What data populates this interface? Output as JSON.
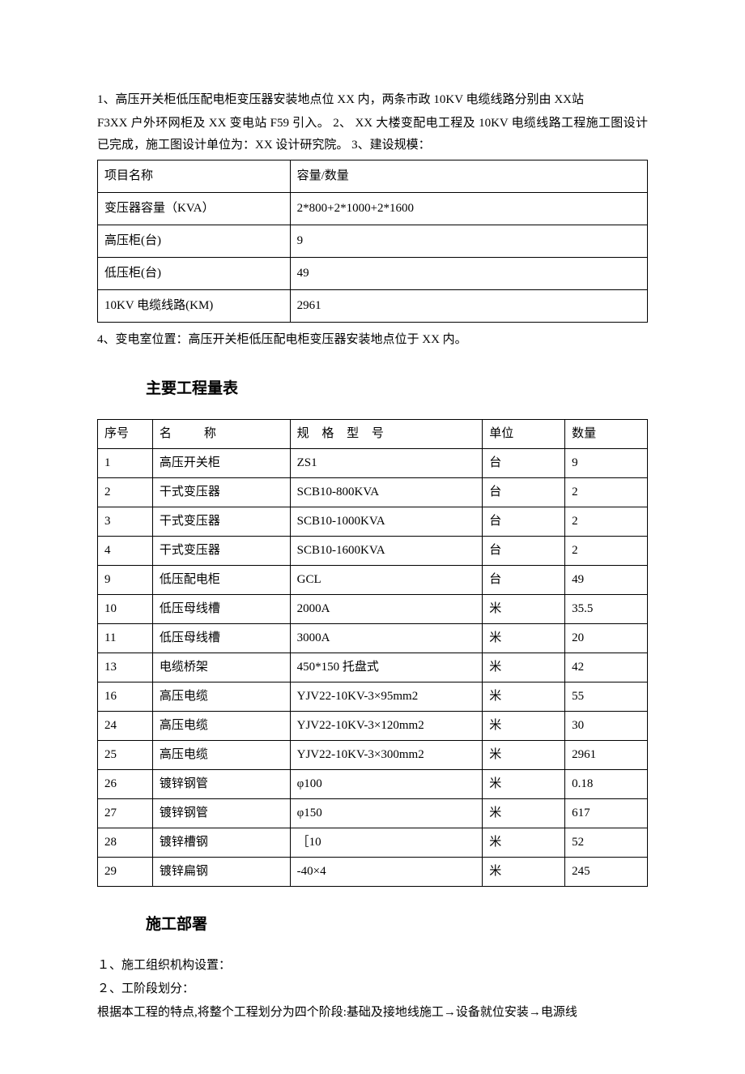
{
  "intro": {
    "p1": "1、高压开关柜低压配电柜变压器安装地点位 XX 内，两条市政 10KV 电缆线路分别由 XX站",
    "p2": "F3XX 户外环网柜及 XX 变电站 F59 引入。 2、 XX 大楼变配电工程及 10KV 电缆线路工程施工图设计已完成，施工图设计单位为：XX 设计研究院。 3、建设规模："
  },
  "table1": {
    "headers": {
      "c1": "项目名称",
      "c2": "容量/数量"
    },
    "rows": [
      {
        "c1": "变压器容量（KVA）",
        "c2": "2*800+2*1000+2*1600"
      },
      {
        "c1": "高压柜(台)",
        "c2": "9"
      },
      {
        "c1": "低压柜(台)",
        "c2": "49"
      },
      {
        "c1": "10KV 电缆线路(KM)",
        "c2": "2961"
      }
    ]
  },
  "note4": "4、变电室位置：高压开关柜低压配电柜变压器安装地点位于 XX 内。",
  "heading1": "主要工程量表",
  "table2": {
    "headers": {
      "c1": "序号",
      "c2": "名称",
      "c3": "规 格 型 号",
      "c4": "单位",
      "c5": "数量"
    },
    "rows": [
      {
        "c1": "1",
        "c2": "高压开关柜",
        "c3": "ZS1",
        "c4": "台",
        "c5": "9"
      },
      {
        "c1": "2",
        "c2": "干式变压器",
        "c3": "SCB10-800KVA",
        "c4": "台",
        "c5": "2"
      },
      {
        "c1": "3",
        "c2": "干式变压器",
        "c3": "SCB10-1000KVA",
        "c4": "台",
        "c5": "2"
      },
      {
        "c1": "4",
        "c2": "干式变压器",
        "c3": "SCB10-1600KVA",
        "c4": "台",
        "c5": "2"
      },
      {
        "c1": "9",
        "c2": "低压配电柜",
        "c3": "GCL",
        "c4": "台",
        "c5": "49"
      },
      {
        "c1": "10",
        "c2": "低压母线槽",
        "c3": "2000A",
        "c4": "米",
        "c5": "35.5"
      },
      {
        "c1": "11",
        "c2": "低压母线槽",
        "c3": "3000A",
        "c4": "米",
        "c5": "20"
      },
      {
        "c1": "13",
        "c2": "电缆桥架",
        "c3": "450*150 托盘式",
        "c4": "米",
        "c5": "42"
      },
      {
        "c1": "16",
        "c2": "高压电缆",
        "c3": "YJV22-10KV-3×95mm2",
        "c4": "米",
        "c5": "55"
      },
      {
        "c1": "24",
        "c2": "高压电缆",
        "c3": "YJV22-10KV-3×120mm2",
        "c4": "米",
        "c5": "30"
      },
      {
        "c1": "25",
        "c2": "高压电缆",
        "c3": "YJV22-10KV-3×300mm2",
        "c4": "米",
        "c5": "2961"
      },
      {
        "c1": "26",
        "c2": "镀锌钢管",
        "c3": "φ100",
        "c4": "米",
        "c5": "0.18"
      },
      {
        "c1": "27",
        "c2": "镀锌钢管",
        "c3": "φ150",
        "c4": "米",
        "c5": "617"
      },
      {
        "c1": "28",
        "c2": "镀锌槽钢",
        "c3": "［10",
        "c4": "米",
        "c5": "52"
      },
      {
        "c1": "29",
        "c2": "镀锌扁钢",
        "c3": "-40×4",
        "c4": "米",
        "c5": "245"
      }
    ]
  },
  "heading2": "施工部署",
  "closing": {
    "p1": "１、施工组织机构设置：",
    "p2": "２、工阶段划分：",
    "p3": "根据本工程的特点,将整个工程划分为四个阶段:基础及接地线施工→设备就位安装→电源线"
  }
}
